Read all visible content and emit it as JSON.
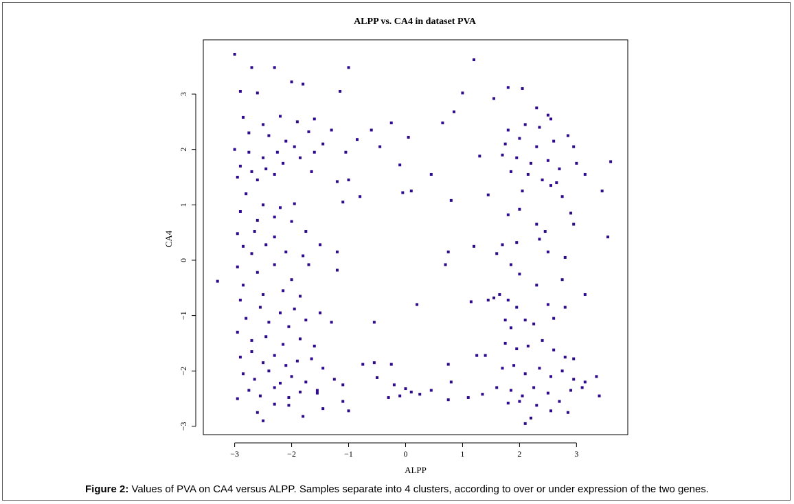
{
  "chart_data": {
    "type": "scatter",
    "title": "ALPP vs. CA4 in dataset PVA",
    "xlabel": "ALPP",
    "ylabel": "CA4",
    "xlim": [
      -3.55,
      3.9
    ],
    "ylim": [
      -3.15,
      3.98
    ],
    "xticks": [
      -3,
      -2,
      -1,
      0,
      1,
      2,
      3
    ],
    "yticks": [
      -3,
      -2,
      -1,
      0,
      1,
      2,
      3
    ],
    "xtick_labels": [
      "−3",
      "−2",
      "−1",
      "0",
      "1",
      "2",
      "3"
    ],
    "ytick_labels": [
      "−3",
      "−2",
      "−1",
      "0",
      "1",
      "2",
      "3"
    ],
    "point_color": "#2e0a8c",
    "points": [
      [
        -3.0,
        3.72
      ],
      [
        -2.3,
        3.48
      ],
      [
        -2.7,
        3.48
      ],
      [
        -2.0,
        3.22
      ],
      [
        -1.8,
        3.18
      ],
      [
        -1.0,
        3.48
      ],
      [
        1.2,
        3.62
      ],
      [
        -2.6,
        3.02
      ],
      [
        -2.9,
        3.05
      ],
      [
        -1.15,
        3.05
      ],
      [
        1.0,
        3.02
      ],
      [
        1.8,
        3.12
      ],
      [
        2.05,
        3.1
      ],
      [
        2.3,
        2.75
      ],
      [
        2.5,
        2.62
      ],
      [
        -2.85,
        2.58
      ],
      [
        -2.5,
        2.45
      ],
      [
        -2.2,
        2.6
      ],
      [
        -1.9,
        2.5
      ],
      [
        -1.6,
        2.55
      ],
      [
        -1.3,
        2.35
      ],
      [
        -2.75,
        2.3
      ],
      [
        -2.4,
        2.25
      ],
      [
        -2.1,
        2.15
      ],
      [
        -1.7,
        2.32
      ],
      [
        -1.45,
        2.1
      ],
      [
        -3.0,
        2.0
      ],
      [
        -2.75,
        1.95
      ],
      [
        -2.5,
        1.85
      ],
      [
        -2.25,
        1.95
      ],
      [
        -1.95,
        2.05
      ],
      [
        -1.6,
        1.95
      ],
      [
        -2.9,
        1.7
      ],
      [
        -2.7,
        1.6
      ],
      [
        -2.45,
        1.65
      ],
      [
        -2.15,
        1.75
      ],
      [
        -1.85,
        1.85
      ],
      [
        -2.95,
        1.5
      ],
      [
        -2.6,
        1.45
      ],
      [
        -2.3,
        1.55
      ],
      [
        -1.65,
        1.6
      ],
      [
        -0.6,
        2.35
      ],
      [
        -0.25,
        2.48
      ],
      [
        0.05,
        2.22
      ],
      [
        -0.85,
        2.18
      ],
      [
        -1.05,
        1.95
      ],
      [
        -0.45,
        2.05
      ],
      [
        -0.1,
        1.72
      ],
      [
        0.45,
        1.55
      ],
      [
        -1.2,
        1.42
      ],
      [
        -1.0,
        1.45
      ],
      [
        -0.8,
        1.15
      ],
      [
        -1.1,
        1.05
      ],
      [
        0.1,
        1.25
      ],
      [
        -0.05,
        1.22
      ],
      [
        0.8,
        1.08
      ],
      [
        0.65,
        2.48
      ],
      [
        0.85,
        2.68
      ],
      [
        1.3,
        1.88
      ],
      [
        1.45,
        1.18
      ],
      [
        1.55,
        2.92
      ],
      [
        1.8,
        2.35
      ],
      [
        2.1,
        2.45
      ],
      [
        2.35,
        2.4
      ],
      [
        2.55,
        2.55
      ],
      [
        1.75,
        2.1
      ],
      [
        2.0,
        2.2
      ],
      [
        2.3,
        2.05
      ],
      [
        2.6,
        2.15
      ],
      [
        2.85,
        2.25
      ],
      [
        2.95,
        2.05
      ],
      [
        1.7,
        1.9
      ],
      [
        1.95,
        1.85
      ],
      [
        2.2,
        1.75
      ],
      [
        2.5,
        1.8
      ],
      [
        2.7,
        1.65
      ],
      [
        3.0,
        1.75
      ],
      [
        1.85,
        1.6
      ],
      [
        2.15,
        1.55
      ],
      [
        2.4,
        1.45
      ],
      [
        2.65,
        1.4
      ],
      [
        3.15,
        1.55
      ],
      [
        3.6,
        1.78
      ],
      [
        3.45,
        1.25
      ],
      [
        2.05,
        1.25
      ],
      [
        2.55,
        1.35
      ],
      [
        2.75,
        1.15
      ],
      [
        -2.8,
        1.2
      ],
      [
        -2.5,
        1.0
      ],
      [
        -2.2,
        0.95
      ],
      [
        -1.95,
        1.02
      ],
      [
        -2.9,
        0.88
      ],
      [
        -2.6,
        0.72
      ],
      [
        -2.3,
        0.78
      ],
      [
        -2.0,
        0.7
      ],
      [
        -2.95,
        0.48
      ],
      [
        -2.65,
        0.52
      ],
      [
        -2.3,
        0.42
      ],
      [
        -1.75,
        0.52
      ],
      [
        -2.85,
        0.25
      ],
      [
        -2.7,
        0.12
      ],
      [
        -2.45,
        0.28
      ],
      [
        -2.1,
        0.15
      ],
      [
        -1.8,
        0.08
      ],
      [
        -1.5,
        0.28
      ],
      [
        -1.2,
        0.15
      ],
      [
        -3.3,
        -0.38
      ],
      [
        -2.95,
        -0.12
      ],
      [
        -2.6,
        -0.22
      ],
      [
        -2.3,
        -0.08
      ],
      [
        -2.0,
        -0.35
      ],
      [
        -1.7,
        -0.08
      ],
      [
        -1.2,
        -0.18
      ],
      [
        -2.85,
        -0.45
      ],
      [
        -2.5,
        -0.62
      ],
      [
        -2.15,
        -0.55
      ],
      [
        -1.85,
        -0.65
      ],
      [
        -2.9,
        -0.72
      ],
      [
        -2.55,
        -0.85
      ],
      [
        -2.2,
        -0.95
      ],
      [
        -1.95,
        -0.88
      ],
      [
        -1.5,
        -0.95
      ],
      [
        -2.8,
        -1.05
      ],
      [
        -2.4,
        -1.12
      ],
      [
        -2.05,
        -1.2
      ],
      [
        -1.75,
        -1.08
      ],
      [
        -1.3,
        -1.12
      ],
      [
        -2.95,
        -1.3
      ],
      [
        -2.7,
        -1.45
      ],
      [
        -2.45,
        -1.38
      ],
      [
        -2.15,
        -1.52
      ],
      [
        -1.85,
        -1.42
      ],
      [
        -1.6,
        -1.55
      ],
      [
        -2.9,
        -1.75
      ],
      [
        -2.7,
        -1.65
      ],
      [
        -2.5,
        -1.85
      ],
      [
        -2.3,
        -1.72
      ],
      [
        -2.1,
        -1.9
      ],
      [
        -1.9,
        -1.82
      ],
      [
        -1.65,
        -1.78
      ],
      [
        -1.45,
        -1.95
      ],
      [
        -2.85,
        -2.05
      ],
      [
        -2.65,
        -2.15
      ],
      [
        -2.4,
        -2.0
      ],
      [
        -2.2,
        -2.22
      ],
      [
        -2.0,
        -2.1
      ],
      [
        -1.75,
        -2.2
      ],
      [
        -1.55,
        -2.35
      ],
      [
        -1.25,
        -2.15
      ],
      [
        -1.1,
        -2.25
      ],
      [
        -2.75,
        -2.35
      ],
      [
        -2.55,
        -2.45
      ],
      [
        -2.3,
        -2.3
      ],
      [
        -2.05,
        -2.48
      ],
      [
        -1.85,
        -2.38
      ],
      [
        -1.55,
        -2.4
      ],
      [
        -2.95,
        -2.5
      ],
      [
        -2.6,
        -2.75
      ],
      [
        -2.3,
        -2.6
      ],
      [
        -2.05,
        -2.62
      ],
      [
        -1.8,
        -2.82
      ],
      [
        -1.45,
        -2.68
      ],
      [
        -1.1,
        -2.55
      ],
      [
        -1.0,
        -2.72
      ],
      [
        -2.5,
        -2.9
      ],
      [
        -0.75,
        -1.88
      ],
      [
        -0.55,
        -1.85
      ],
      [
        -0.25,
        -1.88
      ],
      [
        -0.5,
        -2.12
      ],
      [
        -0.2,
        -2.25
      ],
      [
        0.0,
        -2.32
      ],
      [
        0.25,
        -2.42
      ],
      [
        -0.1,
        -2.45
      ],
      [
        -0.3,
        -2.48
      ],
      [
        0.1,
        -2.38
      ],
      [
        0.45,
        -2.35
      ],
      [
        -0.55,
        -1.12
      ],
      [
        0.2,
        -0.8
      ],
      [
        0.75,
        -1.88
      ],
      [
        0.8,
        -2.2
      ],
      [
        0.75,
        -2.52
      ],
      [
        0.7,
        -0.08
      ],
      [
        1.1,
        -2.48
      ],
      [
        1.35,
        -2.42
      ],
      [
        1.15,
        -0.75
      ],
      [
        1.45,
        -0.72
      ],
      [
        1.55,
        -0.68
      ],
      [
        1.65,
        -0.62
      ],
      [
        1.8,
        -0.72
      ],
      [
        1.95,
        -0.85
      ],
      [
        1.75,
        -1.08
      ],
      [
        2.1,
        -1.08
      ],
      [
        1.85,
        -1.22
      ],
      [
        2.25,
        -1.15
      ],
      [
        2.6,
        -1.05
      ],
      [
        2.8,
        -0.85
      ],
      [
        2.5,
        -0.8
      ],
      [
        2.0,
        -0.25
      ],
      [
        2.3,
        -0.45
      ],
      [
        2.75,
        -0.35
      ],
      [
        3.15,
        -0.62
      ],
      [
        1.25,
        -1.72
      ],
      [
        1.4,
        -1.72
      ],
      [
        1.75,
        -1.5
      ],
      [
        1.95,
        -1.6
      ],
      [
        2.15,
        -1.55
      ],
      [
        2.4,
        -1.45
      ],
      [
        2.6,
        -1.62
      ],
      [
        2.8,
        -1.75
      ],
      [
        2.95,
        -1.78
      ],
      [
        1.7,
        -1.95
      ],
      [
        1.9,
        -1.9
      ],
      [
        2.1,
        -2.05
      ],
      [
        2.35,
        -1.95
      ],
      [
        2.55,
        -2.1
      ],
      [
        2.75,
        -2.0
      ],
      [
        2.95,
        -2.15
      ],
      [
        3.15,
        -2.2
      ],
      [
        3.35,
        -2.1
      ],
      [
        1.6,
        -2.3
      ],
      [
        1.85,
        -2.35
      ],
      [
        2.05,
        -2.45
      ],
      [
        2.25,
        -2.3
      ],
      [
        2.5,
        -2.4
      ],
      [
        2.7,
        -2.55
      ],
      [
        2.9,
        -2.35
      ],
      [
        3.1,
        -2.3
      ],
      [
        3.4,
        -2.45
      ],
      [
        1.8,
        -2.58
      ],
      [
        2.0,
        -2.55
      ],
      [
        2.3,
        -2.62
      ],
      [
        2.55,
        -2.72
      ],
      [
        2.85,
        -2.75
      ],
      [
        2.1,
        -2.95
      ],
      [
        2.2,
        -2.85
      ],
      [
        1.6,
        0.12
      ],
      [
        1.7,
        0.28
      ],
      [
        1.95,
        0.32
      ],
      [
        2.35,
        0.38
      ],
      [
        2.45,
        0.52
      ],
      [
        2.3,
        0.65
      ],
      [
        2.0,
        0.92
      ],
      [
        1.8,
        0.82
      ],
      [
        2.5,
        0.15
      ],
      [
        2.8,
        0.05
      ],
      [
        2.95,
        0.65
      ],
      [
        2.9,
        0.85
      ],
      [
        1.2,
        0.25
      ],
      [
        1.85,
        -0.08
      ],
      [
        3.55,
        0.42
      ],
      [
        0.75,
        0.15
      ]
    ]
  },
  "caption": {
    "label": "Figure 2:",
    "text": " Values of PVA on CA4 versus ALPP. Samples separate into 4 clusters, according to over or under expression of the two genes."
  }
}
